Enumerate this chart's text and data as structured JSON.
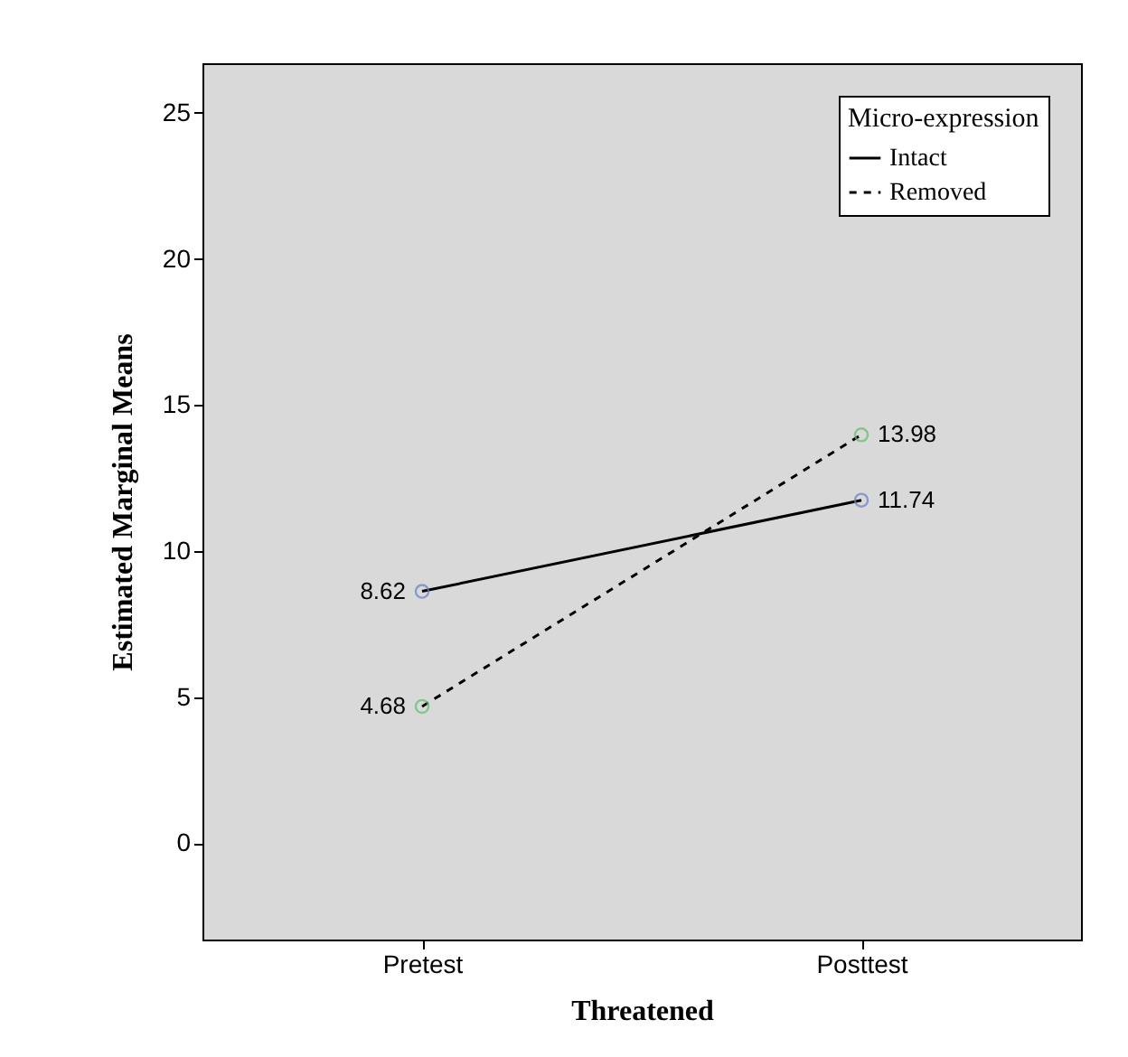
{
  "chart_data": {
    "type": "line",
    "xlabel": "Threatened",
    "ylabel": "Estimated Marginal Means",
    "legend_title": "Micro-expression",
    "categories": [
      "Pretest",
      "Posttest"
    ],
    "series": [
      {
        "name": "Intact",
        "color": "#000000",
        "colors": [
          "#6a7fc0",
          "#6a7fc0"
        ],
        "line_style": "solid",
        "values": [
          8.62,
          11.74
        ]
      },
      {
        "name": "Removed",
        "color": "#000000",
        "colors": [
          "#5cbf6a",
          "#5cbf6a"
        ],
        "line_style": "dashed",
        "values": [
          4.68,
          13.98
        ]
      }
    ],
    "ylim": [
      -3.3,
      26.7
    ],
    "yticks": [
      0,
      5,
      10,
      15,
      20,
      25
    ],
    "data_labels": true,
    "legend": "top right",
    "marker": "circle",
    "grid": false
  }
}
